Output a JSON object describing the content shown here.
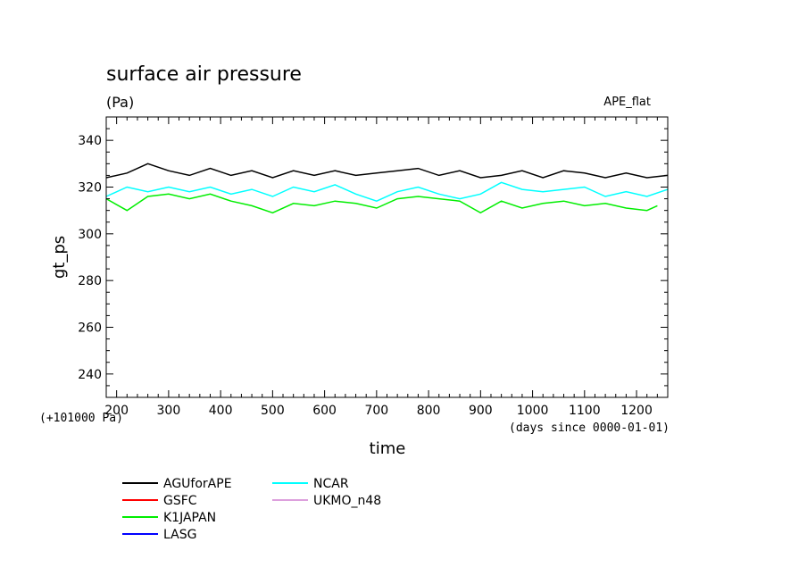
{
  "chart_data": {
    "type": "line",
    "title": "surface air pressure",
    "units": "(Pa)",
    "experiment": "APE_flat",
    "ylabel": "gt_ps",
    "xlabel": "time",
    "x_unit_note": "(days since 0000-01-01)",
    "y_offset_note": "(+101000 Pa)",
    "xlim": [
      180,
      1260
    ],
    "ylim": [
      230,
      350
    ],
    "x_ticks": [
      200,
      300,
      400,
      500,
      600,
      700,
      800,
      900,
      1000,
      1100,
      1200
    ],
    "y_ticks": [
      240,
      260,
      280,
      300,
      320,
      340
    ],
    "grid": false,
    "legend_position": "bottom-left",
    "series": [
      {
        "name": "AGUforAPE",
        "color": "#000000",
        "x": [
          180,
          220,
          260,
          300,
          340,
          380,
          420,
          460,
          500,
          540,
          580,
          620,
          660,
          700,
          740,
          780,
          820,
          860,
          900,
          940,
          980,
          1020,
          1060,
          1100,
          1140,
          1180,
          1220,
          1260
        ],
        "values": [
          324,
          326,
          330,
          327,
          325,
          328,
          325,
          327,
          324,
          327,
          325,
          327,
          325,
          326,
          327,
          328,
          325,
          327,
          324,
          325,
          327,
          324,
          327,
          326,
          324,
          326,
          324,
          325
        ]
      },
      {
        "name": "GSFC",
        "color": "#ff0000",
        "x": [],
        "values": []
      },
      {
        "name": "K1JAPAN",
        "color": "#00ee00",
        "x": [
          180,
          220,
          260,
          300,
          340,
          380,
          420,
          460,
          500,
          540,
          580,
          620,
          660,
          700,
          740,
          780,
          820,
          860,
          900,
          940,
          980,
          1020,
          1060,
          1100,
          1140,
          1180,
          1220,
          1240
        ],
        "values": [
          315,
          310,
          316,
          317,
          315,
          317,
          314,
          312,
          309,
          313,
          312,
          314,
          313,
          311,
          315,
          316,
          315,
          314,
          309,
          314,
          311,
          313,
          314,
          312,
          313,
          311,
          310,
          312
        ]
      },
      {
        "name": "LASG",
        "color": "#0000ff",
        "x": [],
        "values": []
      },
      {
        "name": "NCAR",
        "color": "#00ffff",
        "x": [
          180,
          220,
          260,
          300,
          340,
          380,
          420,
          460,
          500,
          540,
          580,
          620,
          660,
          700,
          740,
          780,
          820,
          860,
          900,
          940,
          980,
          1020,
          1060,
          1100,
          1140,
          1180,
          1220,
          1260
        ],
        "values": [
          316,
          320,
          318,
          320,
          318,
          320,
          317,
          319,
          316,
          320,
          318,
          321,
          317,
          314,
          318,
          320,
          317,
          315,
          317,
          322,
          319,
          318,
          319,
          320,
          316,
          318,
          316,
          319
        ]
      },
      {
        "name": "UKMO_n48",
        "color": "#dda0dd",
        "x": [],
        "values": []
      }
    ]
  }
}
